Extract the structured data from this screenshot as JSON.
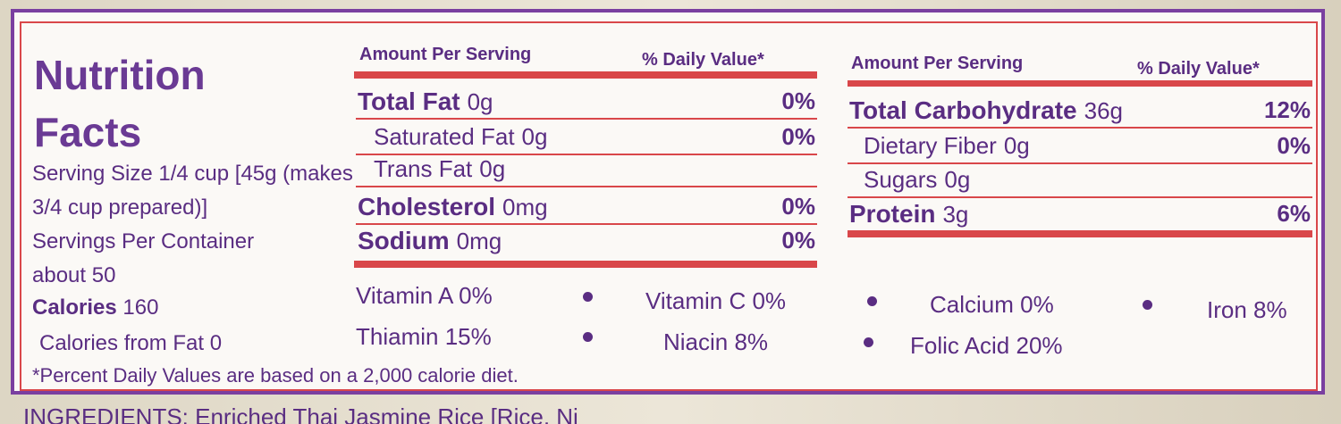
{
  "label": {
    "title": "Nutrition Facts",
    "serving_size": "Serving Size 1/4 cup [45g (makes 3/4 cup prepared)]",
    "servings_per_container": "Servings Per Container about 50",
    "calories": {
      "name": "Calories",
      "amount": "160"
    },
    "calories_from_fat": "Calories from Fat 0",
    "footnote": "*Percent Daily Values are based on a 2,000 calorie diet.",
    "left_table": {
      "header_amount": "Amount Per Serving",
      "header_dv": "% Daily Value*",
      "rows": [
        {
          "name": "Total Fat",
          "amount": "0g",
          "dv": "0%"
        },
        {
          "name": "Saturated Fat",
          "amount": "0g",
          "dv": "0%"
        },
        {
          "name": "Trans Fat",
          "amount": "0g"
        },
        {
          "name": "Cholesterol",
          "amount": "0mg",
          "dv": "0%"
        },
        {
          "name": "Sodium",
          "amount": "0mg",
          "dv": "0%"
        }
      ]
    },
    "right_table": {
      "header_amount": "Amount Per Serving",
      "header_dv": "% Daily Value*",
      "rows": [
        {
          "name": "Total Carbohydrate",
          "amount": "36g",
          "dv": "12%"
        },
        {
          "name": "Dietary Fiber",
          "amount": "0g",
          "dv": "0%"
        },
        {
          "name": "Sugars",
          "amount": "0g"
        },
        {
          "name": "Protein",
          "amount": "3g",
          "dv": "6%"
        }
      ]
    },
    "vitamins": [
      "Vitamin A 0%",
      "Vitamin C 0%",
      "Calcium 0%",
      "Iron 8%",
      "Thiamin 15%",
      "Niacin 8%",
      "Folic Acid 20%"
    ],
    "ingredients": "INGREDIENTS: Enriched Thai Jasmine Rice [Rice, Ni"
  }
}
